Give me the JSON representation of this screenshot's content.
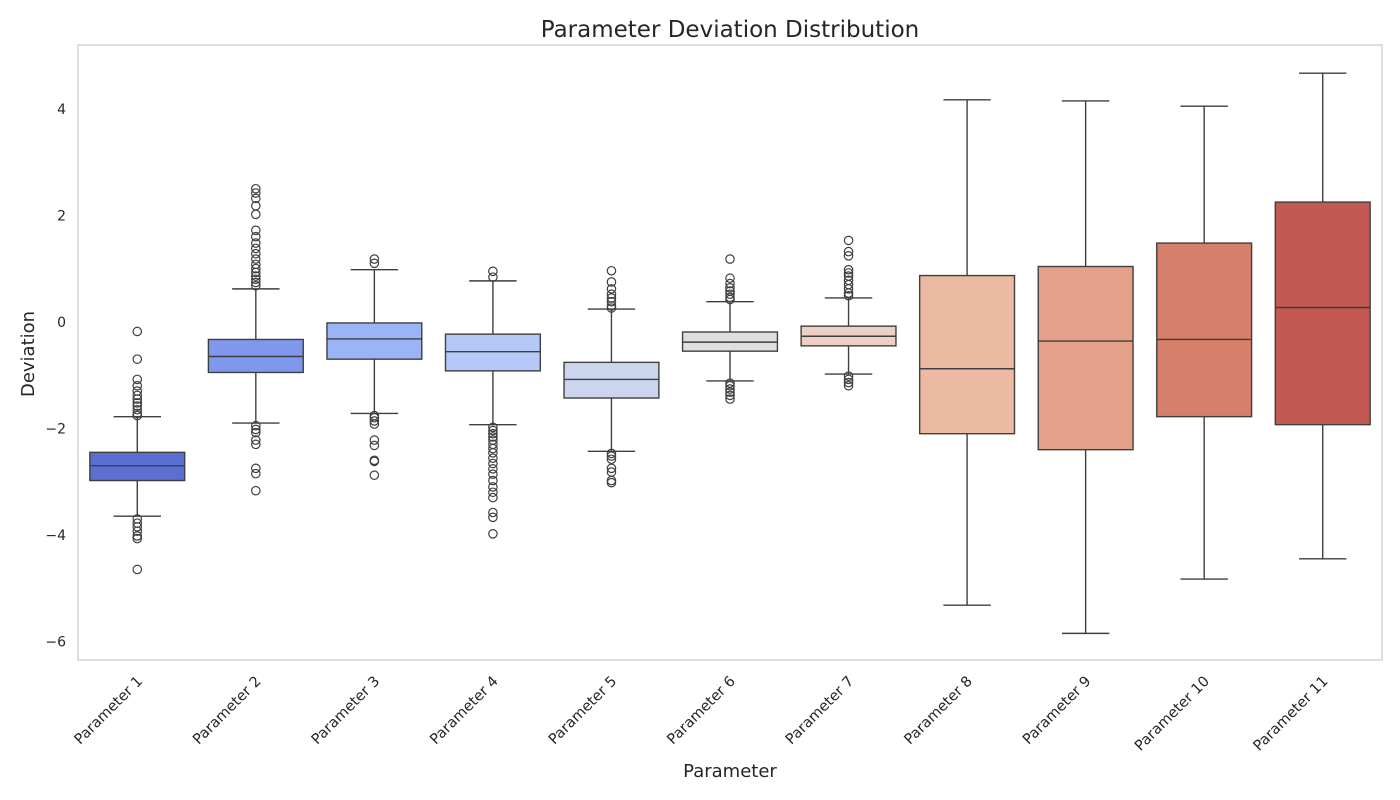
{
  "chart_data": {
    "type": "boxplot",
    "title": "Parameter Deviation Distribution",
    "xlabel": "Parameter",
    "ylabel": "Deviation",
    "ylim": [
      -6.35,
      5.2
    ],
    "yticks": [
      4,
      2,
      0,
      -2,
      -4,
      -6
    ],
    "ytick_labels": [
      "4",
      "2",
      "0",
      "−2",
      "−4",
      "−6"
    ],
    "grid": false,
    "legend": "none",
    "categories": [
      "Parameter 1",
      "Parameter 2",
      "Parameter 3",
      "Parameter 4",
      "Parameter 5",
      "Parameter 6",
      "Parameter 7",
      "Parameter 8",
      "Parameter 9",
      "Parameter 10",
      "Parameter 11"
    ],
    "colors": [
      "#5b6fd3",
      "#7f97ec",
      "#9bb4f8",
      "#b4c9f7",
      "#cbd6ee",
      "#e0dfe0",
      "#ecd0c3",
      "#ecb9a2",
      "#e4a089",
      "#d67f6a",
      "#c25952"
    ],
    "series": [
      {
        "q1": -2.98,
        "median": -2.7,
        "q3": -2.45,
        "whisker_low": -3.65,
        "whisker_high": -1.78,
        "outliers": [
          -0.18,
          -0.7,
          -1.08,
          -1.2,
          -1.3,
          -1.38,
          -1.45,
          -1.52,
          -1.58,
          -1.65,
          -1.72,
          -1.76,
          -3.7,
          -3.78,
          -3.85,
          -3.93,
          -4.02,
          -4.07,
          -4.65
        ]
      },
      {
        "q1": -0.95,
        "median": -0.65,
        "q3": -0.33,
        "whisker_low": -1.9,
        "whisker_high": 0.62,
        "outliers": [
          2.5,
          2.42,
          2.32,
          2.18,
          2.02,
          1.72,
          1.6,
          1.48,
          1.38,
          1.28,
          1.18,
          1.08,
          1.0,
          0.93,
          0.86,
          0.8,
          0.74,
          0.68,
          -1.95,
          -2.02,
          -2.08,
          -2.22,
          -2.3,
          -2.75,
          -2.85,
          -3.17
        ]
      },
      {
        "q1": -0.7,
        "median": -0.32,
        "q3": -0.02,
        "whisker_low": -1.72,
        "whisker_high": 0.98,
        "outliers": [
          1.18,
          1.1,
          -1.76,
          -1.8,
          -1.86,
          -1.92,
          -2.22,
          -2.32,
          -2.6,
          -2.62,
          -2.88
        ]
      },
      {
        "q1": -0.92,
        "median": -0.56,
        "q3": -0.23,
        "whisker_low": -1.93,
        "whisker_high": 0.77,
        "outliers": [
          0.95,
          0.84,
          -1.98,
          -2.04,
          -2.1,
          -2.16,
          -2.22,
          -2.3,
          -2.38,
          -2.46,
          -2.56,
          -2.66,
          -2.76,
          -2.86,
          -2.98,
          -3.1,
          -3.2,
          -3.3,
          -3.58,
          -3.67,
          -3.98
        ]
      },
      {
        "q1": -1.43,
        "median": -1.08,
        "q3": -0.76,
        "whisker_low": -2.43,
        "whisker_high": 0.24,
        "outliers": [
          0.96,
          0.75,
          0.62,
          0.52,
          0.45,
          0.38,
          0.3,
          0.26,
          -2.47,
          -2.52,
          -2.58,
          -2.75,
          -2.82,
          -2.98,
          -3.02
        ]
      },
      {
        "q1": -0.55,
        "median": -0.38,
        "q3": -0.19,
        "whisker_low": -1.11,
        "whisker_high": 0.38,
        "outliers": [
          1.18,
          0.82,
          0.72,
          0.64,
          0.58,
          0.52,
          0.46,
          0.42,
          -1.15,
          -1.2,
          -1.26,
          -1.32,
          -1.38,
          -1.45
        ]
      },
      {
        "q1": -0.45,
        "median": -0.27,
        "q3": -0.08,
        "whisker_low": -0.98,
        "whisker_high": 0.45,
        "outliers": [
          1.53,
          1.32,
          1.24,
          0.98,
          0.92,
          0.86,
          0.78,
          0.7,
          0.62,
          0.54,
          0.49,
          -1.02,
          -1.08,
          -1.14,
          -1.2
        ]
      },
      {
        "q1": -2.1,
        "median": -0.88,
        "q3": 0.87,
        "whisker_low": -5.32,
        "whisker_high": 4.17,
        "outliers": []
      },
      {
        "q1": -2.4,
        "median": -0.36,
        "q3": 1.04,
        "whisker_low": -5.85,
        "whisker_high": 4.15,
        "outliers": []
      },
      {
        "q1": -1.78,
        "median": -0.33,
        "q3": 1.48,
        "whisker_low": -4.83,
        "whisker_high": 4.05,
        "outliers": []
      },
      {
        "q1": -1.93,
        "median": 0.27,
        "q3": 2.25,
        "whisker_low": -4.45,
        "whisker_high": 4.67,
        "outliers": []
      }
    ]
  }
}
